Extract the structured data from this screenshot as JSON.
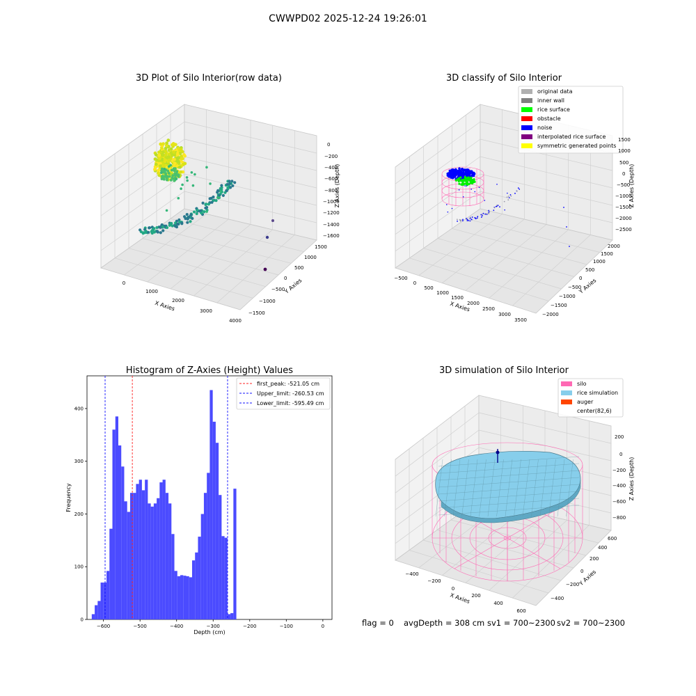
{
  "suptitle": "CWWPD02 2025-12-24 19:26:01",
  "footer": {
    "flag": "flag = 0",
    "avg_depth": "avgDepth = 308 cm",
    "sv1": "sv1 = 700~2300",
    "sv2": "sv2 = 700~2300"
  },
  "colors": {
    "hist_bar": "#4b4bff",
    "first_peak": "#ff2020",
    "limit_line": "#1010ff",
    "silo": "#ff69b4",
    "rice_simulation": "#87ceeb",
    "auger": "#ff4500",
    "pane": "#f2f2f2"
  },
  "chart_data": [
    {
      "type": "scatter",
      "projection": "3d",
      "title": "3D Plot of Silo Interior(row data)",
      "xlabel": "X Axies",
      "ylabel": "Y Axies",
      "zlabel": "Z Axies (Depth)",
      "xticks": [
        "0",
        "1000",
        "2000",
        "3000",
        "4000"
      ],
      "yticks": [
        "−1500",
        "−1000",
        "−500",
        "0",
        "500",
        "1000",
        "1500"
      ],
      "zticks": [
        "0",
        "−200",
        "−400",
        "−600",
        "−800",
        "−1000",
        "−1200",
        "−1400",
        "−1600"
      ],
      "colormap": "viridis",
      "grid": true
    },
    {
      "type": "scatter",
      "projection": "3d",
      "title": "3D classify of Silo Interior",
      "xlabel": "X Axies",
      "ylabel": "Y Axies",
      "zlabel": "Z Axies (Depth)",
      "xticks": [
        "−500",
        "0",
        "500",
        "1000",
        "1500",
        "2000",
        "2500",
        "3000",
        "3500"
      ],
      "yticks": [
        "−2000",
        "−1500",
        "−1000",
        "−500",
        "0",
        "500",
        "1000",
        "1500",
        "2000"
      ],
      "zticks": [
        "1500",
        "1000",
        "500",
        "0",
        "−500",
        "−1000",
        "−1500",
        "−2000",
        "−2500"
      ],
      "legend": [
        {
          "label": "original data",
          "color": "#b0b0b0"
        },
        {
          "label": "inner wall",
          "color": "#808080"
        },
        {
          "label": "rice surface",
          "color": "#00ff00"
        },
        {
          "label": "obstacle",
          "color": "#ff0000"
        },
        {
          "label": "noise",
          "color": "#0000ff"
        },
        {
          "label": "interpolated rice surface",
          "color": "#800080"
        },
        {
          "label": "symmetric generated points",
          "color": "#ffff00"
        }
      ],
      "legend_loc": "upper right",
      "grid": true
    },
    {
      "type": "bar",
      "title": "Histogram of Z-Axies (Height) Values",
      "xlabel": "Depth (cm)",
      "ylabel": "Frequency",
      "xlim": [
        -645,
        25
      ],
      "ylim": [
        0,
        462
      ],
      "xticks": [
        -600,
        -500,
        -400,
        -300,
        -200,
        -100,
        0
      ],
      "xtick_labels": [
        "−600",
        "−500",
        "−400",
        "−300",
        "−200",
        "−100",
        "0"
      ],
      "yticks": [
        0,
        100,
        200,
        300,
        400
      ],
      "bin_start": -632,
      "bin_width": 8.07,
      "values": [
        10,
        27,
        35,
        70,
        70,
        92,
        172,
        360,
        385,
        330,
        290,
        224,
        204,
        240,
        240,
        257,
        265,
        245,
        265,
        220,
        214,
        220,
        230,
        260,
        265,
        240,
        220,
        162,
        92,
        82,
        84,
        83,
        82,
        80,
        112,
        127,
        157,
        200,
        240,
        278,
        435,
        375,
        335,
        236,
        158,
        155,
        10,
        12,
        248
      ],
      "vlines": [
        {
          "label": "first_peak: -521.05 cm",
          "x": -521.05,
          "color": "#ff2020"
        },
        {
          "label": "Upper_limit: -260.53 cm",
          "x": -260.53,
          "color": "#1010ff"
        },
        {
          "label": "Lower_limit: -595.49 cm",
          "x": -595.49,
          "color": "#1010ff"
        }
      ],
      "legend_loc": "upper right"
    },
    {
      "type": "surface",
      "projection": "3d",
      "title": "3D simulation of Silo Interior",
      "xlabel": "X Axies",
      "ylabel": "Y Axies",
      "zlabel": "Z Axies (Depth)",
      "xticks": [
        "−400",
        "−200",
        "0",
        "200",
        "400",
        "600"
      ],
      "yticks": [
        "−400",
        "−200",
        "0",
        "200",
        "400",
        "600"
      ],
      "zticks": [
        "200",
        "0",
        "−200",
        "−400",
        "−600",
        "−800"
      ],
      "legend": [
        {
          "label": "silo",
          "color": "#ff69b4"
        },
        {
          "label": "rice simulation",
          "color": "#87ceeb"
        },
        {
          "label": "auger",
          "color": "#ff4500"
        },
        {
          "label": "center(82,6)",
          "color": "#ffffff"
        }
      ],
      "legend_loc": "upper right",
      "grid": true
    }
  ]
}
